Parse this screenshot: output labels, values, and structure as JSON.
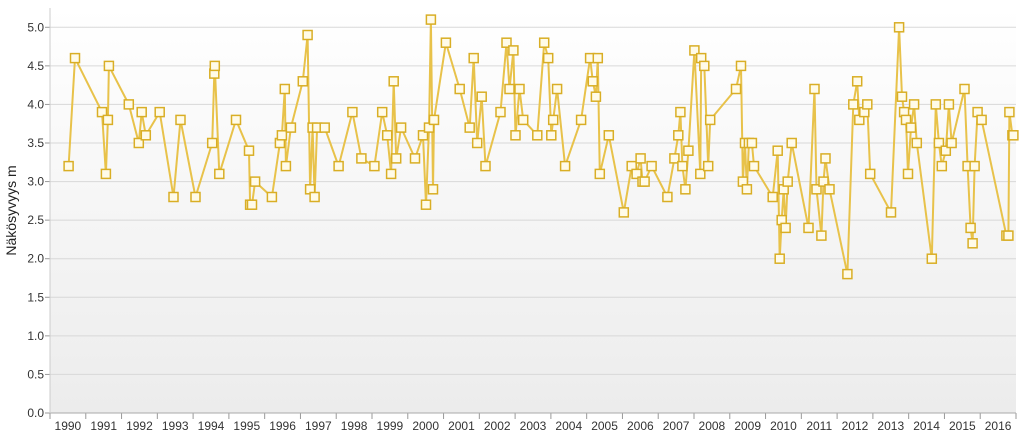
{
  "chart_data": {
    "type": "line",
    "title": "",
    "xlabel": "",
    "ylabel": "Näkösyvyys m",
    "xlim": [
      "1990-01-01",
      "2016-12-31"
    ],
    "ylim": [
      0,
      5.25
    ],
    "grid": true,
    "legend": "none",
    "x_tick_labels": [
      "1990",
      "1991",
      "1992",
      "1993",
      "1994",
      "1995",
      "1996",
      "1997",
      "1998",
      "1999",
      "2000",
      "2001",
      "2002",
      "2003",
      "2004",
      "2005",
      "2006",
      "2007",
      "2008",
      "2009",
      "2010",
      "2011",
      "2012",
      "2013",
      "2014",
      "2015",
      "2016"
    ],
    "y_tick_labels": [
      "0.0",
      "0.5",
      "1.0",
      "1.5",
      "2.0",
      "2.5",
      "3.0",
      "3.5",
      "4.0",
      "4.5",
      "5.0"
    ],
    "colors": {
      "line": "#e8c24a",
      "marker_fill": "#fffbe8",
      "marker_stroke": "#d9ae25",
      "grid": "#d8d8d8",
      "plot_bg_top": "#ffffff",
      "plot_bg_bottom": "#ececec"
    },
    "series": [
      {
        "points": [
          [
            "1990-07-10",
            3.2
          ],
          [
            "1990-09-13",
            4.6
          ],
          [
            "1991-06-15",
            3.9
          ],
          [
            "1991-07-25",
            3.1
          ],
          [
            "1991-08-15",
            3.8
          ],
          [
            "1991-08-25",
            4.5
          ],
          [
            "1992-03-15",
            4.0
          ],
          [
            "1992-06-25",
            3.5
          ],
          [
            "1992-07-25",
            3.9
          ],
          [
            "1992-09-05",
            3.6
          ],
          [
            "1993-01-25",
            3.9
          ],
          [
            "1993-06-15",
            2.8
          ],
          [
            "1993-08-25",
            3.8
          ],
          [
            "1994-01-25",
            2.8
          ],
          [
            "1994-07-15",
            3.5
          ],
          [
            "1994-08-05",
            4.4
          ],
          [
            "1994-08-10",
            4.5
          ],
          [
            "1994-09-25",
            3.1
          ],
          [
            "1995-03-15",
            3.8
          ],
          [
            "1995-07-25",
            3.4
          ],
          [
            "1995-08-05",
            2.7
          ],
          [
            "1995-08-25",
            2.7
          ],
          [
            "1995-09-25",
            3.0
          ],
          [
            "1996-03-15",
            2.8
          ],
          [
            "1996-06-05",
            3.5
          ],
          [
            "1996-06-25",
            3.6
          ],
          [
            "1996-07-25",
            4.2
          ],
          [
            "1996-08-05",
            3.2
          ],
          [
            "1996-09-25",
            3.7
          ],
          [
            "1997-01-25",
            4.3
          ],
          [
            "1997-03-15",
            4.9
          ],
          [
            "1997-04-10",
            2.9
          ],
          [
            "1997-05-05",
            3.7
          ],
          [
            "1997-05-25",
            2.8
          ],
          [
            "1997-06-20",
            3.7
          ],
          [
            "1997-09-05",
            3.7
          ],
          [
            "1998-01-25",
            3.2
          ],
          [
            "1998-06-15",
            3.9
          ],
          [
            "1998-09-15",
            3.3
          ],
          [
            "1999-01-25",
            3.2
          ],
          [
            "1999-04-15",
            3.9
          ],
          [
            "1999-06-05",
            3.6
          ],
          [
            "1999-07-15",
            3.1
          ],
          [
            "1999-08-10",
            4.3
          ],
          [
            "1999-09-05",
            3.3
          ],
          [
            "1999-10-25",
            3.7
          ],
          [
            "2000-03-15",
            3.3
          ],
          [
            "2000-06-05",
            3.6
          ],
          [
            "2000-07-05",
            2.7
          ],
          [
            "2000-08-05",
            3.7
          ],
          [
            "2000-08-25",
            5.1
          ],
          [
            "2000-09-15",
            2.9
          ],
          [
            "2000-09-25",
            3.8
          ],
          [
            "2001-01-25",
            4.8
          ],
          [
            "2001-06-15",
            4.2
          ],
          [
            "2001-09-25",
            3.7
          ],
          [
            "2001-11-05",
            4.6
          ],
          [
            "2001-12-10",
            3.5
          ],
          [
            "2002-01-25",
            4.1
          ],
          [
            "2002-03-05",
            3.2
          ],
          [
            "2002-08-05",
            3.9
          ],
          [
            "2002-10-05",
            4.8
          ],
          [
            "2002-11-05",
            4.2
          ],
          [
            "2002-12-15",
            4.7
          ],
          [
            "2003-01-05",
            3.6
          ],
          [
            "2003-02-15",
            4.2
          ],
          [
            "2003-03-25",
            3.8
          ],
          [
            "2003-08-15",
            3.6
          ],
          [
            "2003-10-25",
            4.8
          ],
          [
            "2003-12-05",
            4.6
          ],
          [
            "2004-01-05",
            3.6
          ],
          [
            "2004-01-25",
            3.8
          ],
          [
            "2004-03-05",
            4.2
          ],
          [
            "2004-05-25",
            3.2
          ],
          [
            "2004-11-05",
            3.8
          ],
          [
            "2005-02-05",
            4.6
          ],
          [
            "2005-03-05",
            4.3
          ],
          [
            "2005-04-05",
            4.1
          ],
          [
            "2005-04-25",
            4.6
          ],
          [
            "2005-05-15",
            3.1
          ],
          [
            "2005-08-15",
            3.6
          ],
          [
            "2006-01-15",
            2.6
          ],
          [
            "2006-04-05",
            3.2
          ],
          [
            "2006-05-25",
            3.1
          ],
          [
            "2006-07-05",
            3.3
          ],
          [
            "2006-07-25",
            3.0
          ],
          [
            "2006-08-15",
            3.0
          ],
          [
            "2006-10-25",
            3.2
          ],
          [
            "2007-04-05",
            2.8
          ],
          [
            "2007-06-15",
            3.3
          ],
          [
            "2007-07-25",
            3.6
          ],
          [
            "2007-08-15",
            3.9
          ],
          [
            "2007-09-05",
            3.2
          ],
          [
            "2007-10-05",
            2.9
          ],
          [
            "2007-11-05",
            3.4
          ],
          [
            "2008-01-05",
            4.7
          ],
          [
            "2008-03-05",
            3.1
          ],
          [
            "2008-03-15",
            4.6
          ],
          [
            "2008-04-15",
            4.5
          ],
          [
            "2008-05-25",
            3.2
          ],
          [
            "2008-06-15",
            3.8
          ],
          [
            "2009-03-05",
            4.2
          ],
          [
            "2009-04-25",
            4.5
          ],
          [
            "2009-05-15",
            3.0
          ],
          [
            "2009-06-05",
            3.5
          ],
          [
            "2009-06-25",
            2.9
          ],
          [
            "2009-07-15",
            3.5
          ],
          [
            "2009-08-15",
            3.5
          ],
          [
            "2009-09-05",
            3.2
          ],
          [
            "2010-03-15",
            2.8
          ],
          [
            "2010-05-05",
            3.4
          ],
          [
            "2010-05-25",
            2.0
          ],
          [
            "2010-06-15",
            2.5
          ],
          [
            "2010-07-05",
            2.9
          ],
          [
            "2010-07-25",
            2.4
          ],
          [
            "2010-08-15",
            3.0
          ],
          [
            "2010-09-25",
            3.5
          ],
          [
            "2011-03-15",
            2.4
          ],
          [
            "2011-05-15",
            4.2
          ],
          [
            "2011-06-05",
            2.9
          ],
          [
            "2011-07-25",
            2.3
          ],
          [
            "2011-08-15",
            3.0
          ],
          [
            "2011-09-05",
            3.3
          ],
          [
            "2011-10-15",
            2.9
          ],
          [
            "2012-04-15",
            1.8
          ],
          [
            "2012-06-15",
            4.0
          ],
          [
            "2012-07-25",
            4.3
          ],
          [
            "2012-08-15",
            3.8
          ],
          [
            "2012-10-05",
            3.9
          ],
          [
            "2012-11-05",
            4.0
          ],
          [
            "2012-12-05",
            3.1
          ],
          [
            "2013-07-05",
            2.6
          ],
          [
            "2013-09-25",
            5.0
          ],
          [
            "2013-10-25",
            4.1
          ],
          [
            "2013-11-15",
            3.9
          ],
          [
            "2013-12-05",
            3.8
          ],
          [
            "2013-12-25",
            3.1
          ],
          [
            "2014-01-25",
            3.7
          ],
          [
            "2014-02-25",
            4.0
          ],
          [
            "2014-03-25",
            3.5
          ],
          [
            "2014-08-25",
            2.0
          ],
          [
            "2014-10-05",
            4.0
          ],
          [
            "2014-11-05",
            3.5
          ],
          [
            "2014-12-05",
            3.2
          ],
          [
            "2015-01-15",
            3.4
          ],
          [
            "2015-02-15",
            4.0
          ],
          [
            "2015-03-15",
            3.5
          ],
          [
            "2015-07-25",
            4.2
          ],
          [
            "2015-08-25",
            3.2
          ],
          [
            "2015-09-25",
            2.4
          ],
          [
            "2015-10-15",
            2.2
          ],
          [
            "2015-11-05",
            3.2
          ],
          [
            "2015-12-05",
            3.9
          ],
          [
            "2016-01-15",
            3.8
          ],
          [
            "2016-09-25",
            2.3
          ],
          [
            "2016-10-15",
            2.3
          ],
          [
            "2016-10-25",
            3.9
          ],
          [
            "2016-11-25",
            3.6
          ],
          [
            "2016-12-05",
            3.6
          ]
        ]
      }
    ]
  }
}
